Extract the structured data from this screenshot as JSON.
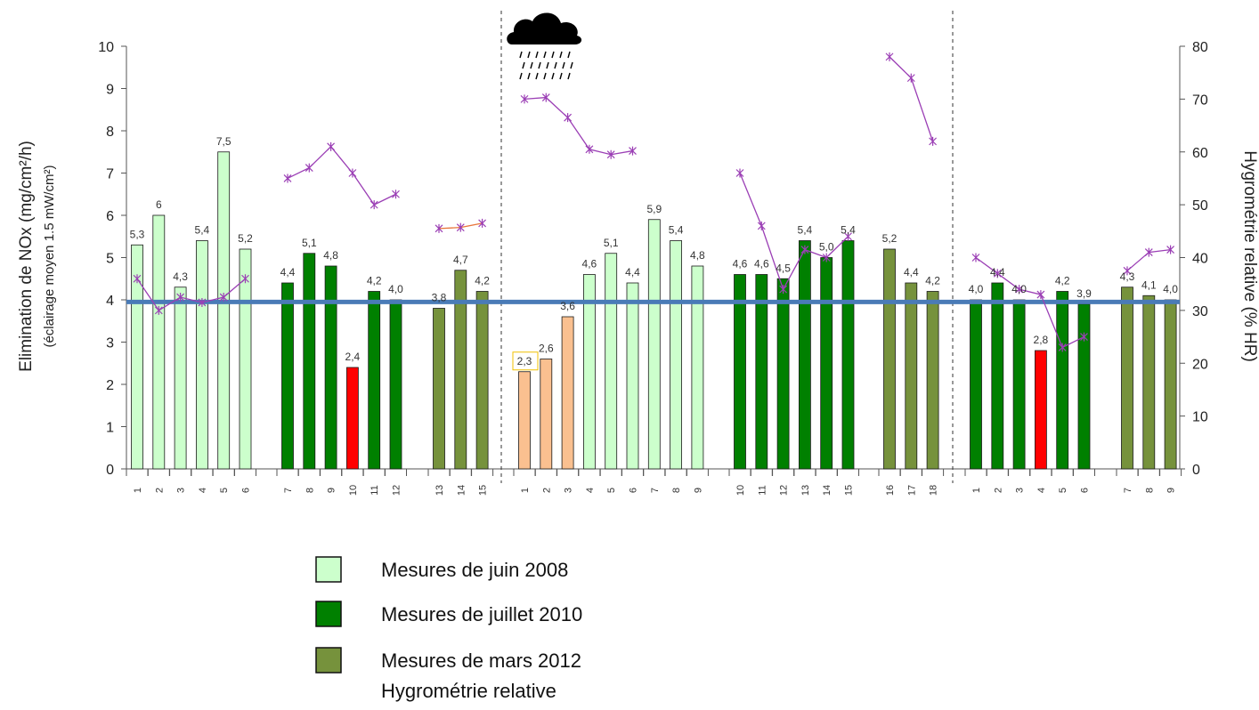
{
  "chart_data": {
    "type": "bar",
    "y_left": {
      "title": "Elimination de NOx (mg/cm²/h)",
      "subtitle": "(éclairage moyen 1.5 mW/cm²)",
      "range": [
        0,
        10
      ],
      "ticks": [
        "0",
        "1",
        "2",
        "3",
        "4",
        "5",
        "6",
        "7",
        "8",
        "9",
        "10"
      ]
    },
    "y_right": {
      "title": "Hygrométrie relative (% HR)",
      "range": [
        0,
        80
      ],
      "ticks": [
        "0",
        "10",
        "20",
        "30",
        "40",
        "50",
        "60",
        "70",
        "80"
      ]
    },
    "reference_line": {
      "value": 3.95,
      "color": "#4a7bb7"
    },
    "colors": {
      "juin_2008": "#ccffcc",
      "juillet_2010": "#008000",
      "mars_2012": "#76923c",
      "red": "#ff0000",
      "orange": "#fac090",
      "humidity": "#9b3fb5",
      "humidity_highlight": "#e8743b"
    },
    "legend": [
      {
        "key": "juin_2008",
        "label": "Mesures de juin 2008"
      },
      {
        "key": "juillet_2010",
        "label": "Mesures de juillet 2010"
      },
      {
        "key": "mars_2012",
        "label": "Mesures de mars 2012"
      },
      {
        "key": "humidity",
        "label": "Hygrométrie relative"
      }
    ],
    "weather_icon": "rain-cloud-icon",
    "bars": [
      {
        "cat": "1",
        "value": 5.3,
        "label": "5,3",
        "color": "juin_2008"
      },
      {
        "cat": "2",
        "value": 6.0,
        "label": "6",
        "color": "juin_2008"
      },
      {
        "cat": "3",
        "value": 4.3,
        "label": "4,3",
        "color": "juin_2008"
      },
      {
        "cat": "4",
        "value": 5.4,
        "label": "5,4",
        "color": "juin_2008"
      },
      {
        "cat": "5",
        "value": 7.5,
        "label": "7,5",
        "color": "juin_2008"
      },
      {
        "cat": "6",
        "value": 5.2,
        "label": "5,2",
        "color": "juin_2008"
      },
      {
        "cat": "7",
        "value": 4.4,
        "label": "4,4",
        "color": "juillet_2010"
      },
      {
        "cat": "8",
        "value": 5.1,
        "label": "5,1",
        "color": "juillet_2010"
      },
      {
        "cat": "9",
        "value": 4.8,
        "label": "4,8",
        "color": "juillet_2010"
      },
      {
        "cat": "10",
        "value": 2.4,
        "label": "2,4",
        "color": "red"
      },
      {
        "cat": "11",
        "value": 4.2,
        "label": "4,2",
        "color": "juillet_2010"
      },
      {
        "cat": "12",
        "value": 4.0,
        "label": "4,0",
        "color": "juillet_2010"
      },
      {
        "cat": "13",
        "value": 3.8,
        "label": "3,8",
        "color": "mars_2012"
      },
      {
        "cat": "14",
        "value": 4.7,
        "label": "4,7",
        "color": "mars_2012"
      },
      {
        "cat": "15",
        "value": 4.2,
        "label": "4,2",
        "color": "mars_2012"
      },
      {
        "cat": "1",
        "value": 2.3,
        "label": "2,3",
        "color": "orange",
        "boxed": true
      },
      {
        "cat": "2",
        "value": 2.6,
        "label": "2,6",
        "color": "orange"
      },
      {
        "cat": "3",
        "value": 3.6,
        "label": "3,6",
        "color": "orange"
      },
      {
        "cat": "4",
        "value": 4.6,
        "label": "4,6",
        "color": "juin_2008"
      },
      {
        "cat": "5",
        "value": 5.1,
        "label": "5,1",
        "color": "juin_2008"
      },
      {
        "cat": "6",
        "value": 4.4,
        "label": "4,4",
        "color": "juin_2008"
      },
      {
        "cat": "7",
        "value": 5.9,
        "label": "5,9",
        "color": "juin_2008"
      },
      {
        "cat": "8",
        "value": 5.4,
        "label": "5,4",
        "color": "juin_2008"
      },
      {
        "cat": "9",
        "value": 4.8,
        "label": "4,8",
        "color": "juin_2008"
      },
      {
        "cat": "10",
        "value": 4.6,
        "label": "4,6",
        "color": "juillet_2010"
      },
      {
        "cat": "11",
        "value": 4.6,
        "label": "4,6",
        "color": "juillet_2010"
      },
      {
        "cat": "12",
        "value": 4.5,
        "label": "4,5",
        "color": "juillet_2010"
      },
      {
        "cat": "13",
        "value": 5.4,
        "label": "5,4",
        "color": "juillet_2010"
      },
      {
        "cat": "14",
        "value": 5.0,
        "label": "5,0",
        "color": "juillet_2010"
      },
      {
        "cat": "15",
        "value": 5.4,
        "label": "5,4",
        "color": "juillet_2010"
      },
      {
        "cat": "16",
        "value": 5.2,
        "label": "5,2",
        "color": "mars_2012"
      },
      {
        "cat": "17",
        "value": 4.4,
        "label": "4,4",
        "color": "mars_2012"
      },
      {
        "cat": "18",
        "value": 4.2,
        "label": "4,2",
        "color": "mars_2012"
      },
      {
        "cat": "1",
        "value": 4.0,
        "label": "4,0",
        "color": "juillet_2010"
      },
      {
        "cat": "2",
        "value": 4.4,
        "label": "4,4",
        "color": "juillet_2010"
      },
      {
        "cat": "3",
        "value": 4.0,
        "label": "4,0",
        "color": "juillet_2010"
      },
      {
        "cat": "4",
        "value": 2.8,
        "label": "2,8",
        "color": "red"
      },
      {
        "cat": "5",
        "value": 4.2,
        "label": "4,2",
        "color": "juillet_2010"
      },
      {
        "cat": "6",
        "value": 3.9,
        "label": "3,9",
        "color": "juillet_2010"
      },
      {
        "cat": "7",
        "value": 4.3,
        "label": "4,3",
        "color": "mars_2012"
      },
      {
        "cat": "8",
        "value": 4.1,
        "label": "4,1",
        "color": "mars_2012"
      },
      {
        "cat": "9",
        "value": 4.0,
        "label": "4,0",
        "color": "mars_2012"
      }
    ],
    "humidity_segments": [
      {
        "color": "humidity",
        "points": [
          [
            0,
            36
          ],
          [
            1,
            30
          ],
          [
            2,
            32.5
          ],
          [
            3,
            31.5
          ],
          [
            4,
            32.5
          ],
          [
            5,
            36
          ]
        ]
      },
      {
        "color": "humidity",
        "points": [
          [
            6,
            55
          ],
          [
            7,
            57
          ],
          [
            8,
            61
          ],
          [
            9,
            56
          ],
          [
            10,
            50
          ],
          [
            11,
            52
          ]
        ]
      },
      {
        "color": "humidity_highlight",
        "points": [
          [
            12,
            45.5
          ],
          [
            13,
            45.7
          ],
          [
            14,
            46.5
          ]
        ]
      },
      {
        "color": "humidity",
        "points": [
          [
            15,
            70
          ],
          [
            16,
            70.3
          ],
          [
            17,
            66.5
          ],
          [
            18,
            60.5
          ],
          [
            19,
            59.5
          ],
          [
            20,
            60.2
          ]
        ]
      },
      {
        "color": "humidity",
        "points": [
          [
            24,
            56
          ],
          [
            25,
            46
          ],
          [
            26,
            34
          ],
          [
            27,
            41.5
          ],
          [
            28,
            40
          ],
          [
            29,
            44
          ]
        ]
      },
      {
        "color": "humidity",
        "points": [
          [
            30,
            78
          ],
          [
            31,
            74
          ],
          [
            32,
            62
          ]
        ]
      },
      {
        "color": "humidity",
        "points": [
          [
            33,
            40
          ],
          [
            34,
            37
          ],
          [
            35,
            34
          ],
          [
            36,
            33
          ],
          [
            37,
            23
          ],
          [
            38,
            25
          ]
        ]
      },
      {
        "color": "humidity",
        "points": [
          [
            39,
            37.5
          ],
          [
            40,
            41
          ],
          [
            41,
            41.5
          ]
        ]
      }
    ]
  }
}
